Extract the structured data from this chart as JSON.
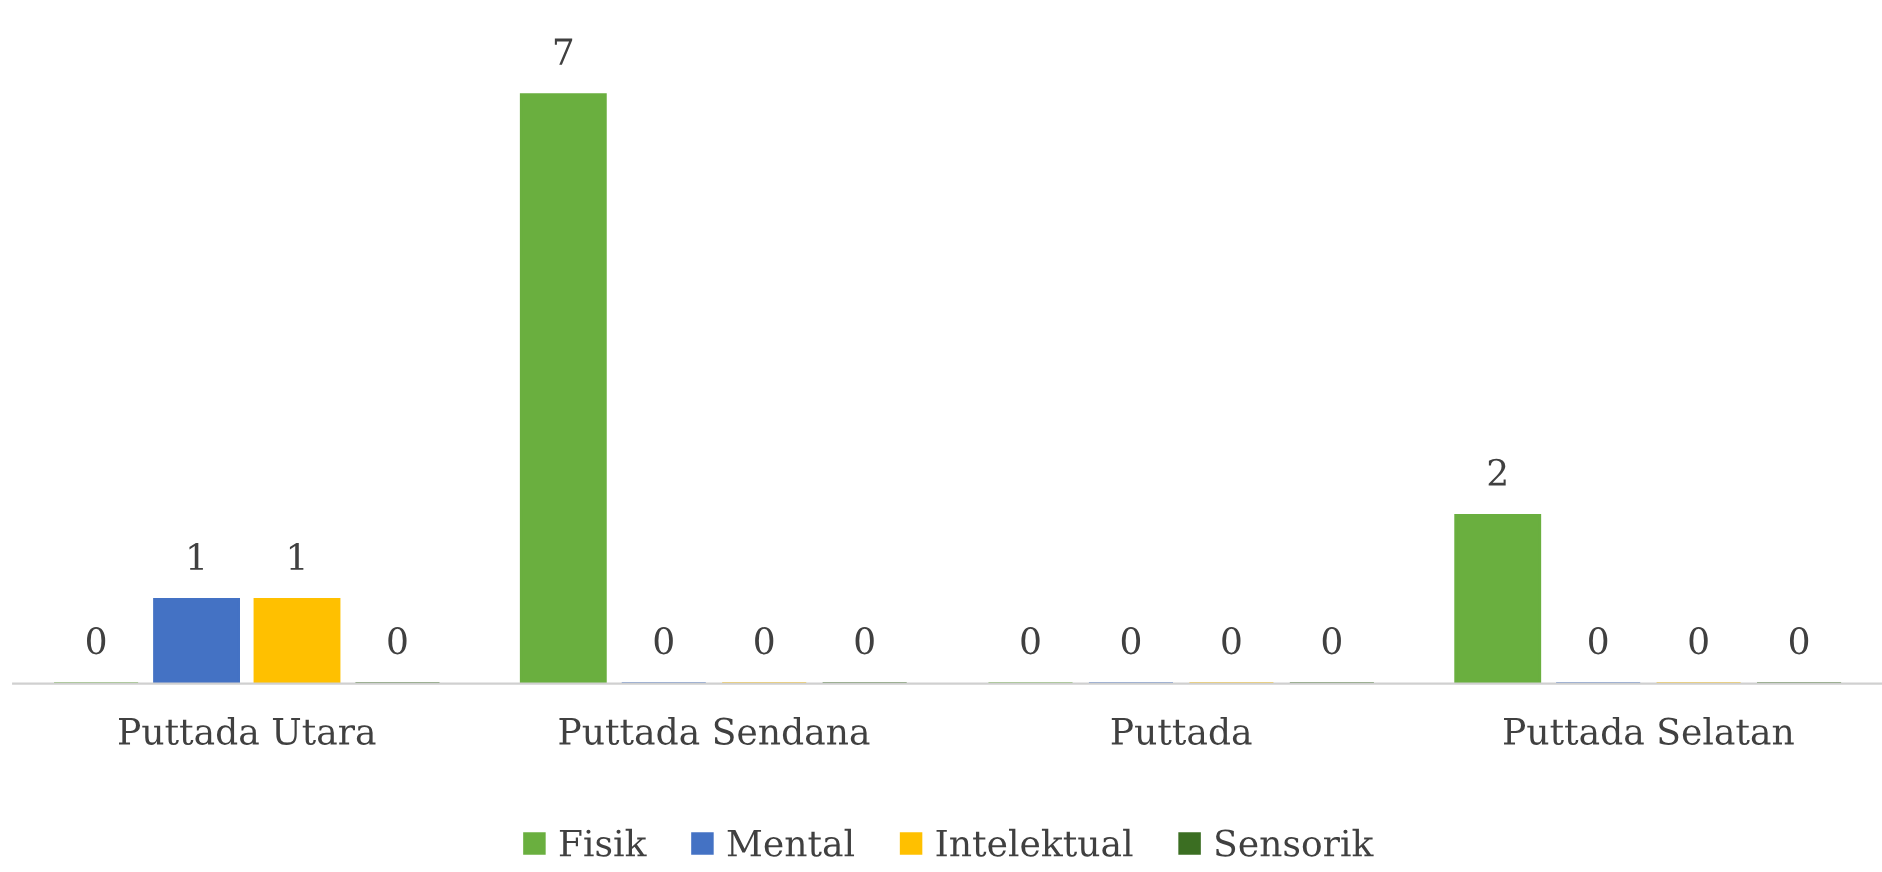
{
  "chart_data": {
    "type": "bar",
    "categories": [
      "Puttada Utara",
      "Puttada Sendana",
      "Puttada",
      "Puttada Selatan"
    ],
    "series": [
      {
        "name": "Fisik",
        "color": "#6aaf3f",
        "values": [
          0,
          7,
          0,
          2
        ]
      },
      {
        "name": "Mental",
        "color": "#4472c4",
        "values": [
          1,
          0,
          0,
          0
        ]
      },
      {
        "name": "Intelektual",
        "color": "#ffc000",
        "values": [
          1,
          0,
          0,
          0
        ]
      },
      {
        "name": "Sensorik",
        "color": "#3b6e22",
        "values": [
          0,
          0,
          0,
          0
        ]
      }
    ],
    "data_labels": true,
    "legend": "bottom",
    "grid": false
  }
}
